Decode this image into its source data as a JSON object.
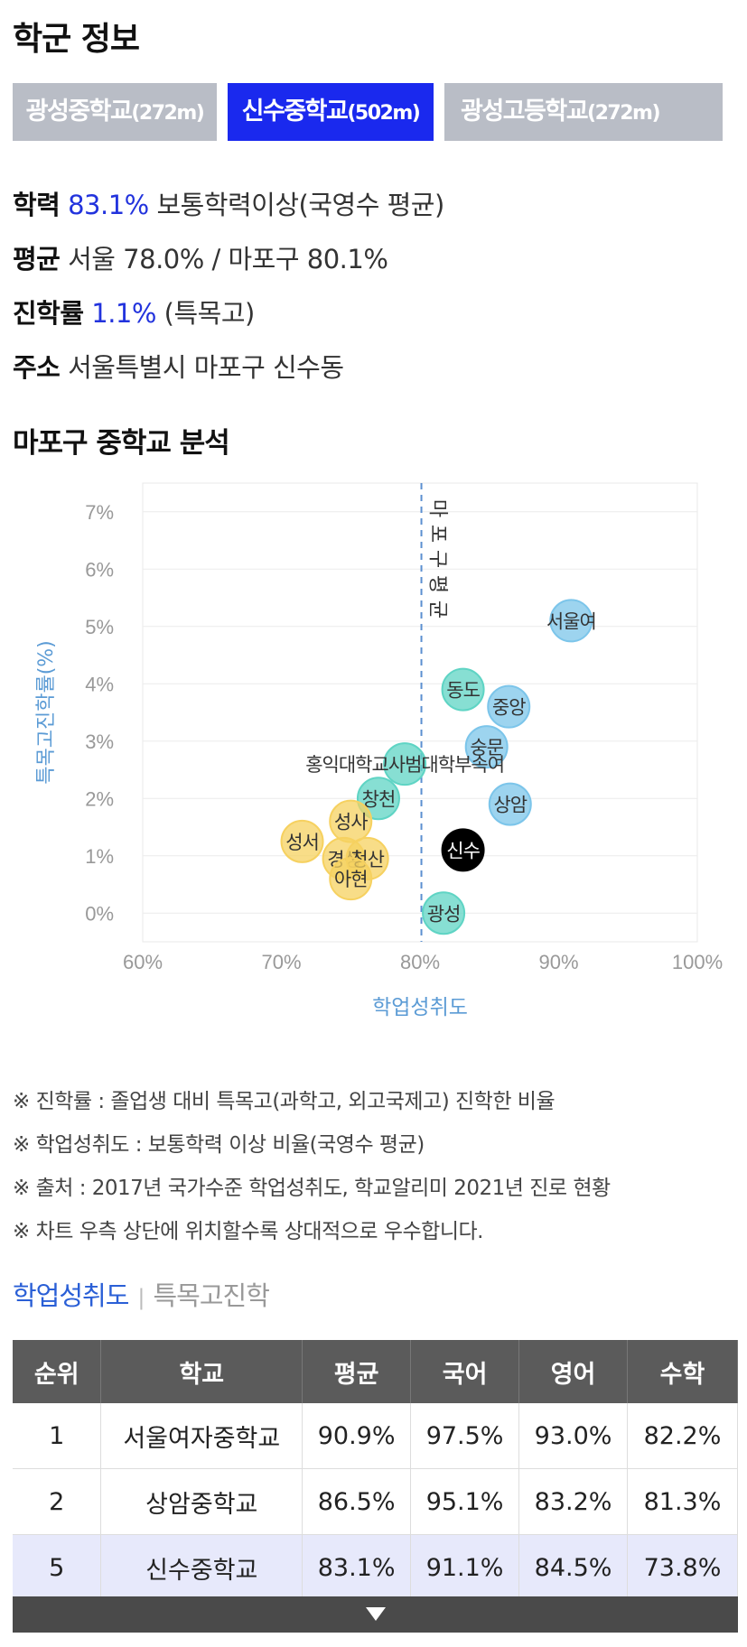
{
  "page": {
    "title": "학군 정보"
  },
  "tabs": [
    {
      "label": "광성중학교",
      "distance": "(272m)",
      "active": false
    },
    {
      "label": "신수중학교",
      "distance": "(502m)",
      "active": true
    },
    {
      "label": "광성고등학교",
      "distance": "(272m)",
      "active": false
    }
  ],
  "info": {
    "achievement": {
      "label": "학력",
      "value": "83.1%",
      "text": "보통학력이상(국영수 평균)"
    },
    "average": {
      "label": "평균",
      "text": "서울 78.0% / 마포구 80.1%"
    },
    "advancement": {
      "label": "진학률",
      "value": "1.1%",
      "text": "(특목고)"
    },
    "address": {
      "label": "주소",
      "text": "서울특별시 마포구 신수동"
    }
  },
  "section_title": "마포구 중학교 분석",
  "chart_data": {
    "type": "scatter",
    "xlabel": "학업성취도",
    "ylabel": "특목고진학률(%)",
    "xlim": [
      60,
      100
    ],
    "ylim": [
      -0.5,
      7.5
    ],
    "x_ticks": [
      "60%",
      "70%",
      "80%",
      "90%",
      "100%"
    ],
    "y_ticks": [
      "0%",
      "1%",
      "2%",
      "3%",
      "4%",
      "5%",
      "6%",
      "7%"
    ],
    "reference_line": {
      "x": 80.1,
      "label": "마포구평균"
    },
    "colors": {
      "top": "#7cc5ea",
      "mid": "#5fd4c4",
      "low": "#f6d160",
      "current": "#000000"
    },
    "points": [
      {
        "name": "서울여",
        "x": 90.9,
        "y": 5.1,
        "group": "top"
      },
      {
        "name": "동도",
        "x": 83.1,
        "y": 3.9,
        "group": "mid"
      },
      {
        "name": "중앙",
        "x": 86.4,
        "y": 3.6,
        "group": "top"
      },
      {
        "name": "숭문",
        "x": 84.8,
        "y": 2.9,
        "group": "top"
      },
      {
        "name": "홍익대학교사범대학부속여",
        "x": 78.9,
        "y": 2.6,
        "group": "mid"
      },
      {
        "name": "창천",
        "x": 77.0,
        "y": 2.0,
        "group": "mid"
      },
      {
        "name": "상암",
        "x": 86.5,
        "y": 1.9,
        "group": "top"
      },
      {
        "name": "신수",
        "x": 83.1,
        "y": 1.1,
        "group": "current"
      },
      {
        "name": "성사",
        "x": 75.0,
        "y": 1.6,
        "group": "low"
      },
      {
        "name": "성서",
        "x": 71.5,
        "y": 1.25,
        "group": "low"
      },
      {
        "name": "경성",
        "x": 74.5,
        "y": 0.95,
        "group": "low"
      },
      {
        "name": "청산",
        "x": 76.2,
        "y": 0.95,
        "group": "low"
      },
      {
        "name": "아현",
        "x": 75.0,
        "y": 0.6,
        "group": "low"
      },
      {
        "name": "광성",
        "x": 81.7,
        "y": 0.0,
        "group": "mid"
      }
    ]
  },
  "notes": [
    "※ 진학률 : 졸업생 대비 특목고(과학고, 외고국제고) 진학한 비율",
    "※ 학업성취도 : 보통학력 이상 비율(국영수 평균)",
    "※ 출처 : 2017년 국가수준 학업성취도, 학교알리미 2021년 진로 현황",
    "※ 차트 우측 상단에 위치할수록 상대적으로 우수합니다."
  ],
  "subtabs": {
    "active": "학업성취도",
    "separator": "|",
    "inactive": "특목고진학"
  },
  "table": {
    "headers": [
      "순위",
      "학교",
      "평균",
      "국어",
      "영어",
      "수학"
    ],
    "rows": [
      [
        "1",
        "서울여자중학교",
        "90.9%",
        "97.5%",
        "93.0%",
        "82.2%"
      ],
      [
        "2",
        "상암중학교",
        "86.5%",
        "95.1%",
        "83.2%",
        "81.3%"
      ],
      [
        "5",
        "신수중학교",
        "83.1%",
        "91.1%",
        "84.5%",
        "73.8%"
      ]
    ],
    "highlight_row": 2
  }
}
